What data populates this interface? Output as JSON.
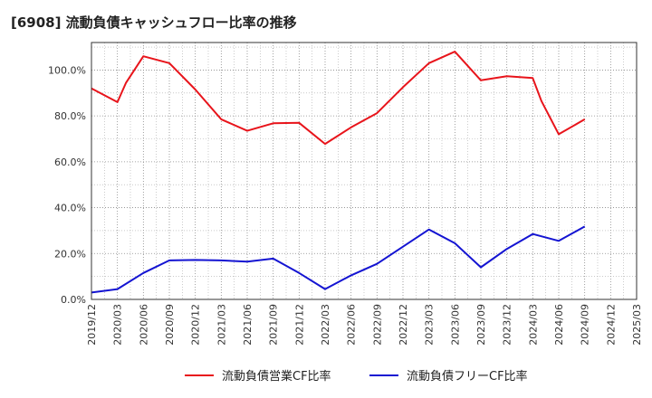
{
  "chart_data": {
    "type": "line",
    "title": "[6908]  流動負債キャッシュフロー比率の推移",
    "xlabel": "",
    "ylabel": "",
    "grid": true,
    "legend_position": "bottom",
    "x": [
      "2019/12",
      "2020/03",
      "2020/06",
      "2020/09",
      "2020/12",
      "2021/03",
      "2021/06",
      "2021/09",
      "2021/12",
      "2022/03",
      "2022/06",
      "2022/09",
      "2022/12",
      "2023/03",
      "2023/06",
      "2023/09",
      "2023/12",
      "2024/03",
      "2024/06",
      "2024/09",
      "2024/12",
      "2025/03"
    ],
    "y_ticks": [
      "0.0%",
      "20.0%",
      "40.0%",
      "60.0%",
      "80.0%",
      "100.0%"
    ],
    "ylim": [
      0,
      112
    ],
    "series": [
      {
        "name": "流動負債営業CF比率",
        "color": "#e8141b",
        "points": [
          [
            "2019/12",
            92.0
          ],
          [
            "2020/03",
            86.0
          ],
          [
            "2020/04",
            94.5
          ],
          [
            "2020/06",
            106.0
          ],
          [
            "2020/09",
            103.0
          ],
          [
            "2020/12",
            91.5
          ],
          [
            "2021/03",
            78.5
          ],
          [
            "2021/06",
            73.5
          ],
          [
            "2021/09",
            76.8
          ],
          [
            "2021/12",
            77.0
          ],
          [
            "2022/03",
            67.8
          ],
          [
            "2022/06",
            75.0
          ],
          [
            "2022/09",
            81.2
          ],
          [
            "2022/12",
            92.5
          ],
          [
            "2023/03",
            103.0
          ],
          [
            "2023/06",
            108.0
          ],
          [
            "2023/09",
            95.5
          ],
          [
            "2023/12",
            97.3
          ],
          [
            "2024/03",
            96.5
          ],
          [
            "2024/04",
            86.5
          ],
          [
            "2024/06",
            72.0
          ],
          [
            "2024/09",
            78.5
          ]
        ]
      },
      {
        "name": "流動負債フリーCF比率",
        "color": "#1414d2",
        "points": [
          [
            "2019/12",
            3.0
          ],
          [
            "2020/03",
            4.5
          ],
          [
            "2020/06",
            11.5
          ],
          [
            "2020/09",
            17.0
          ],
          [
            "2020/12",
            17.2
          ],
          [
            "2021/03",
            17.0
          ],
          [
            "2021/06",
            16.5
          ],
          [
            "2021/09",
            17.8
          ],
          [
            "2021/12",
            11.5
          ],
          [
            "2022/03",
            4.5
          ],
          [
            "2022/06",
            10.5
          ],
          [
            "2022/09",
            15.5
          ],
          [
            "2022/12",
            23.0
          ],
          [
            "2023/03",
            30.5
          ],
          [
            "2023/06",
            24.5
          ],
          [
            "2023/09",
            14.0
          ],
          [
            "2023/12",
            22.0
          ],
          [
            "2024/03",
            28.5
          ],
          [
            "2024/06",
            25.5
          ],
          [
            "2024/09",
            31.8
          ]
        ]
      }
    ]
  }
}
